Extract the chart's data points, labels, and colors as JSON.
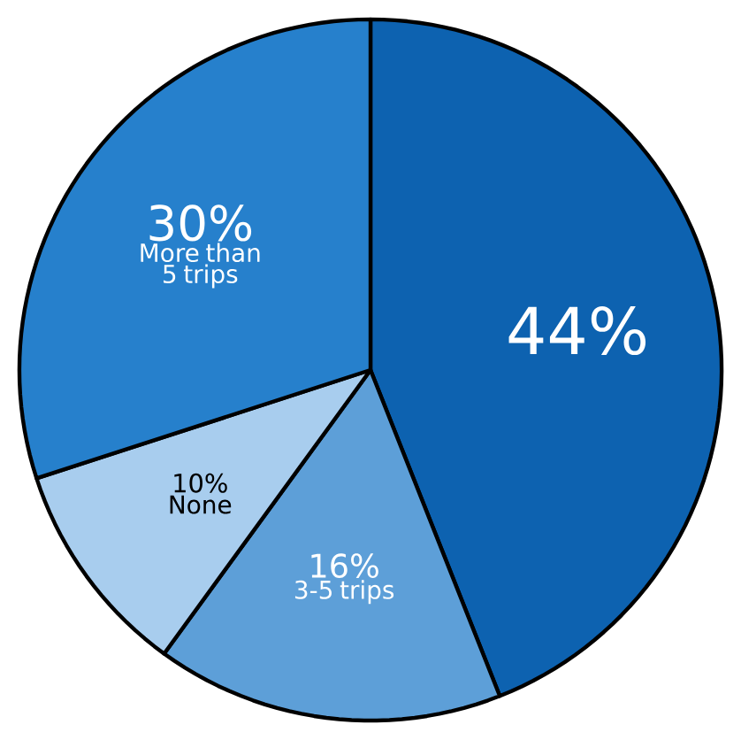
{
  "chart_data": {
    "type": "pie",
    "categories": [
      null,
      "3-5 trips",
      "None",
      "More than 5 trips"
    ],
    "values": [
      44,
      16,
      10,
      30
    ],
    "value_labels": [
      "44%",
      "16%",
      "10%",
      "30%"
    ],
    "colors": [
      "#0d62b0",
      "#5d9fd8",
      "#a8cdee",
      "#2680cc"
    ]
  }
}
